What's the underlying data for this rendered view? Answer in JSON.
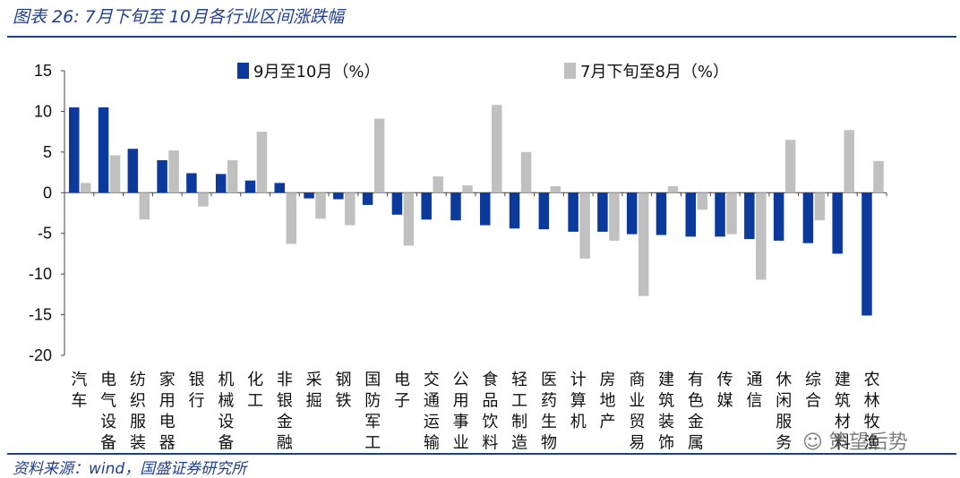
{
  "header": {
    "title": "图表 26:  7月下旬至 10月各行业区间涨跌幅"
  },
  "footer": {
    "source": "资料来源：wind，国盛证券研究所"
  },
  "watermark": {
    "text": "☺ 策望后势"
  },
  "chart_data": {
    "type": "bar",
    "title": "图表 26:  7月下旬至 10月各行业区间涨跌幅",
    "categories": [
      "汽车",
      "电气设备",
      "纺织服装",
      "家用电器",
      "银行",
      "机械设备",
      "化工",
      "非银金融",
      "采掘",
      "钢铁",
      "国防军工",
      "电子",
      "交通运输",
      "公用事业",
      "食品饮料",
      "轻工制造",
      "医药生物",
      "计算机",
      "房地产",
      "商业贸易",
      "建筑装饰",
      "有色金属",
      "传媒",
      "通信",
      "休闲服务",
      "综合",
      "建筑材料",
      "农林牧渔"
    ],
    "series": [
      {
        "name": "9月至10月（%）",
        "color": "#0c3a9c",
        "values": [
          10.5,
          10.5,
          5.4,
          4.0,
          2.4,
          2.3,
          1.5,
          1.2,
          -0.7,
          -0.8,
          -1.5,
          -2.7,
          -3.3,
          -3.4,
          -4.0,
          -4.4,
          -4.5,
          -4.8,
          -4.8,
          -5.1,
          -5.2,
          -5.4,
          -5.4,
          -5.7,
          -5.9,
          -6.2,
          -7.5,
          -15.1
        ]
      },
      {
        "name": "7月下旬至8月（%）",
        "color": "#c0c0c0",
        "values": [
          1.2,
          4.6,
          -3.3,
          5.2,
          -1.7,
          4.0,
          7.5,
          -6.3,
          -3.2,
          -4.0,
          9.1,
          -6.5,
          2.0,
          0.9,
          10.8,
          5.0,
          0.8,
          -8.1,
          -5.9,
          -12.7,
          0.8,
          -2.1,
          -5.1,
          -10.7,
          6.5,
          -3.4,
          7.7,
          3.9
        ]
      }
    ],
    "xlabel": "",
    "ylabel": "",
    "ylim": [
      -20,
      15
    ],
    "yticks": [
      15,
      10,
      5,
      0,
      -5,
      -10,
      -15,
      -20
    ],
    "legend_position": "top",
    "grid": false
  }
}
